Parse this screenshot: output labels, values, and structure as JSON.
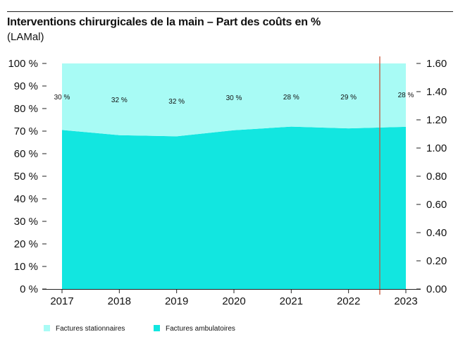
{
  "title": "Interventions chirurgicales de la main – Part des coûts en %",
  "subtitle": "(LAMal)",
  "chart_data": {
    "type": "area",
    "stacked": true,
    "x": [
      "2017",
      "2018",
      "2019",
      "2020",
      "2021",
      "2022",
      "2023"
    ],
    "series": [
      {
        "name": "Factures ambulatoires",
        "color": "#12e6e0",
        "values": [
          70.5,
          68.2,
          67.7,
          70.4,
          72.0,
          71.2,
          71.9
        ]
      },
      {
        "name": "Factures stationnaires",
        "color": "#a8fbf5",
        "values": [
          29.5,
          31.8,
          32.3,
          29.6,
          28.0,
          28.8,
          28.1
        ]
      }
    ],
    "data_labels": [
      "30 %",
      "32 %",
      "32 %",
      "30 %",
      "28 %",
      "29 %",
      "28 %"
    ],
    "left_axis": {
      "ticks": [
        "0 %",
        "10 %",
        "20 %",
        "30 %",
        "40 %",
        "50 %",
        "60 %",
        "70 %",
        "80 %",
        "90 %",
        "100 %"
      ],
      "ylim": [
        0,
        100
      ]
    },
    "right_axis": {
      "ticks": [
        "0.00",
        "0.20",
        "0.40",
        "0.60",
        "0.80",
        "1.00",
        "1.20",
        "1.40",
        "1.60"
      ],
      "ylim": [
        0,
        1.6
      ]
    },
    "marker_line": {
      "position_between": [
        "2022",
        "2023"
      ],
      "color": "#c8553a"
    },
    "legend_position": "bottom-left",
    "grid": false
  }
}
